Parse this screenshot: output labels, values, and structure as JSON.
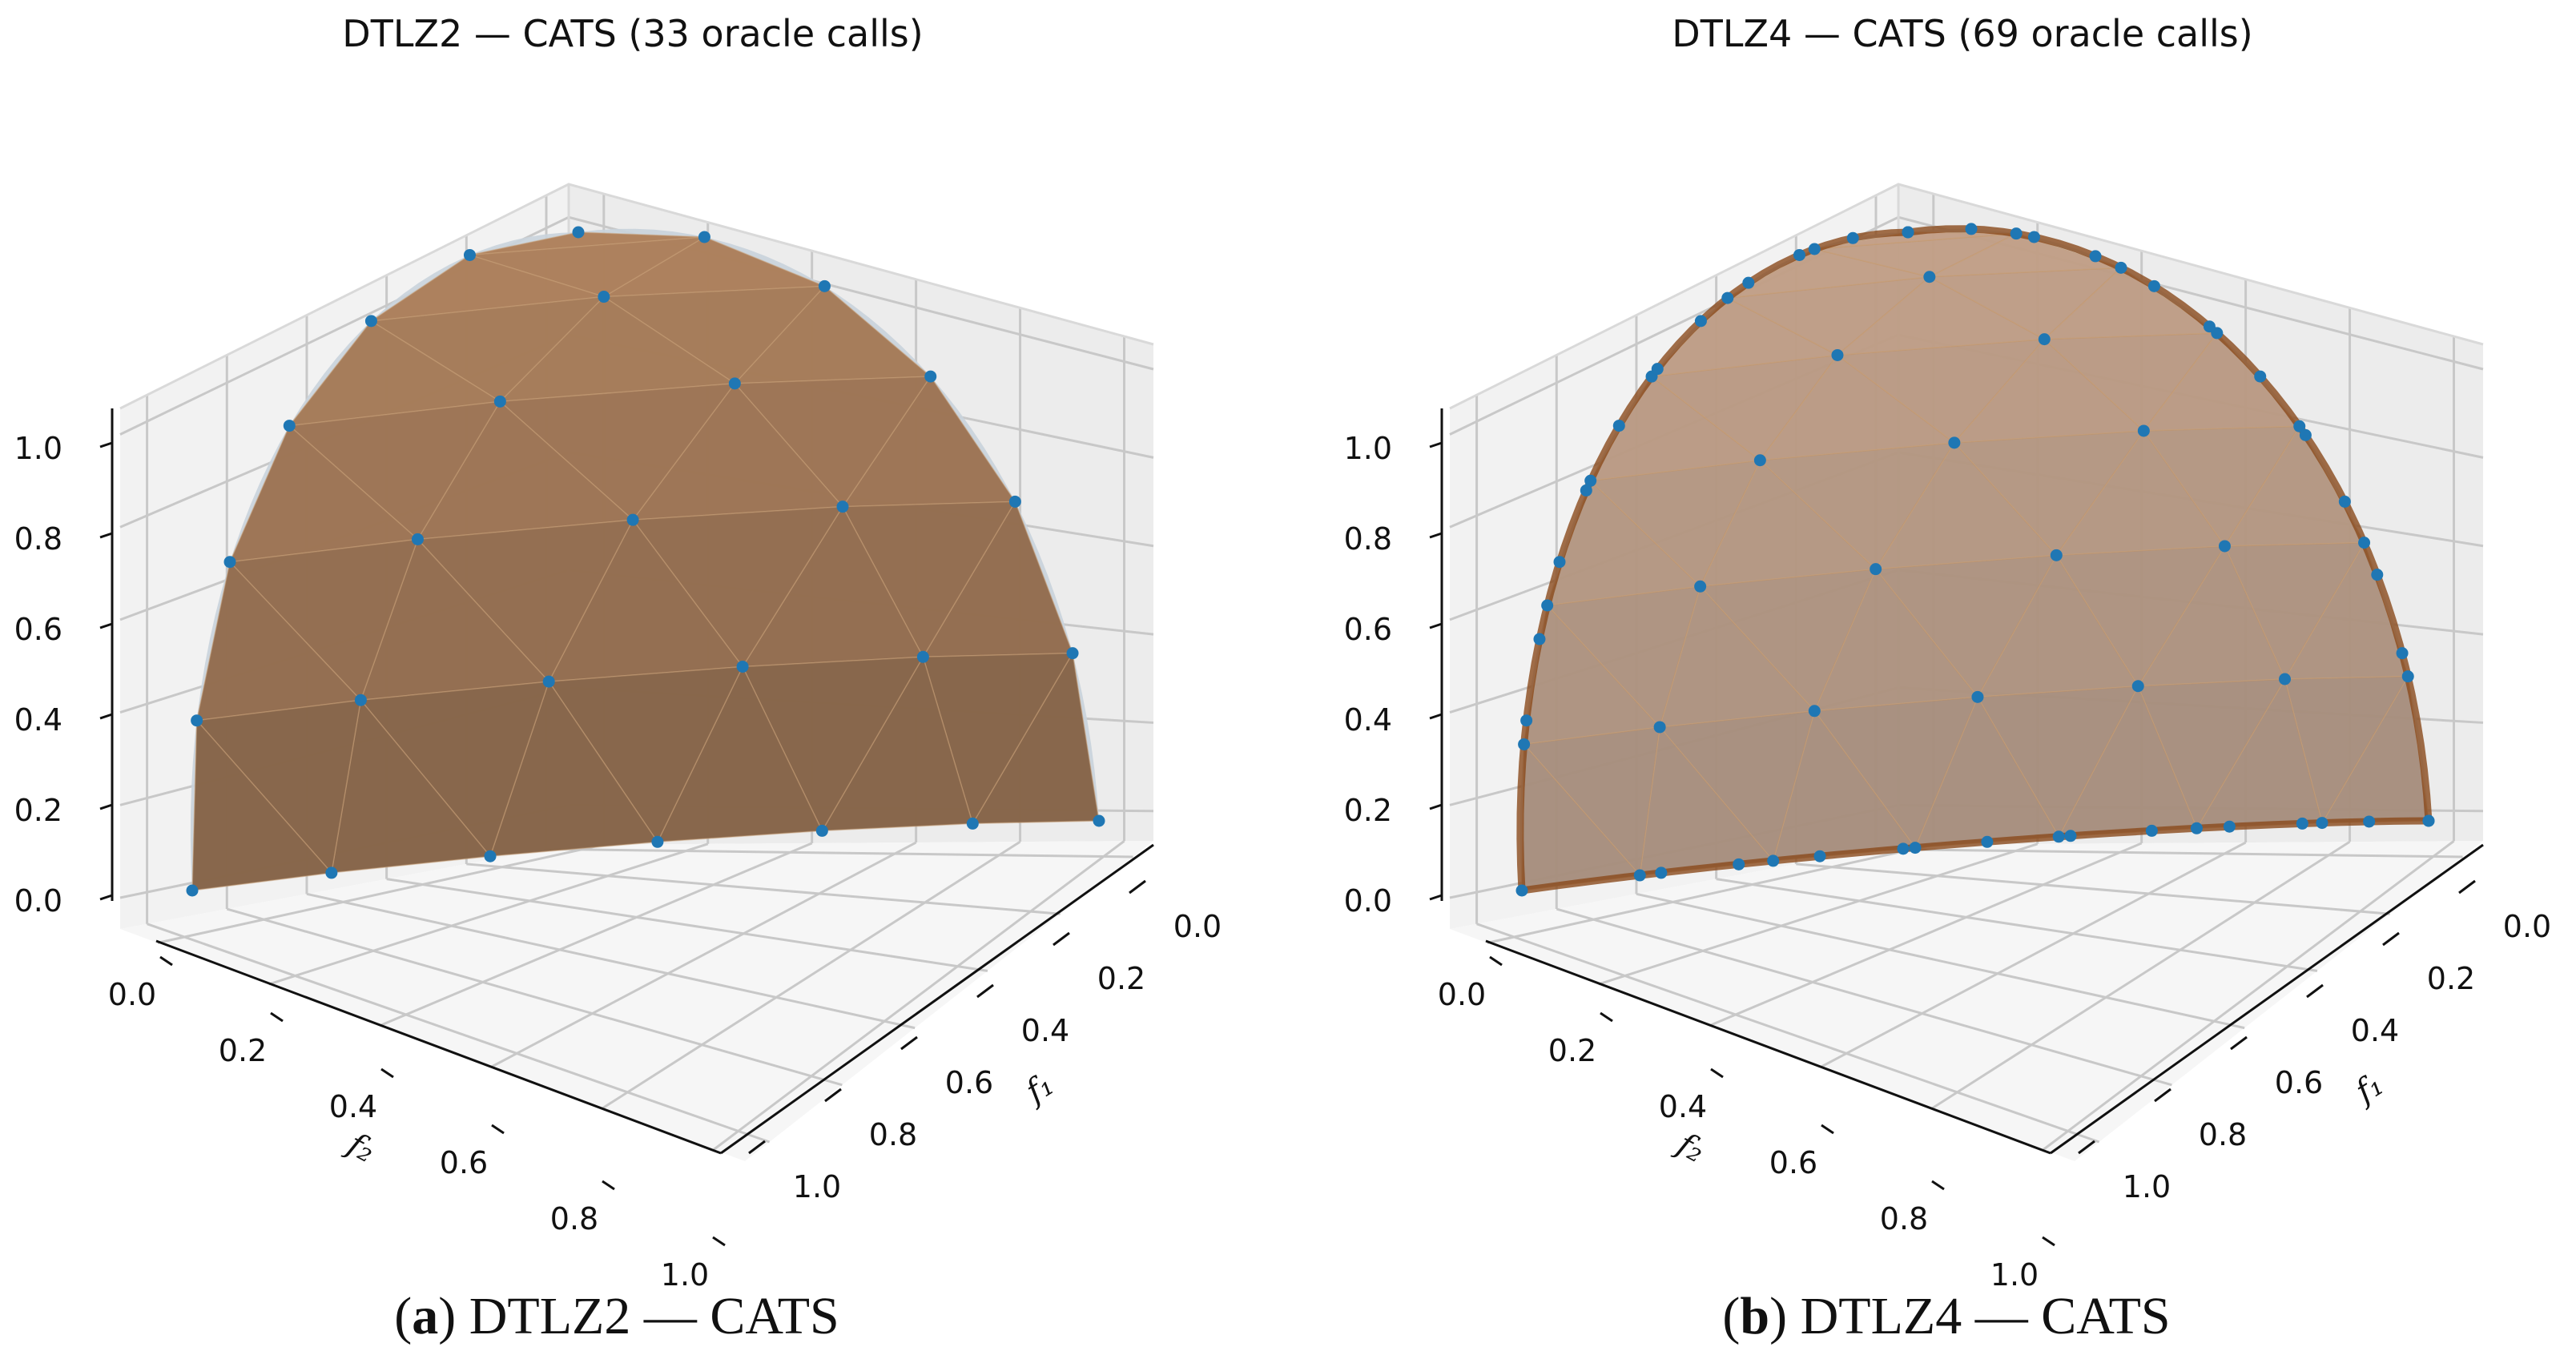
{
  "chart_data": [
    {
      "type": "scatter3d",
      "title": "DTLZ2 — CATS (33 oracle calls)",
      "caption_letter": "a",
      "caption_text": ") DTLZ2 — CATS",
      "x_axis_label": "f₁",
      "y_axis_label": "f₂",
      "x_ticks": [
        "0.0",
        "0.2",
        "0.4",
        "0.6",
        "0.8",
        "1.0"
      ],
      "y_ticks": [
        "0.0",
        "0.2",
        "0.4",
        "0.6",
        "0.8",
        "1.0"
      ],
      "z_ticks": [
        "0.0",
        "0.2",
        "0.4",
        "0.6",
        "0.8",
        "1.0"
      ],
      "xlim": [
        0,
        1
      ],
      "ylim": [
        0,
        1
      ],
      "zlim": [
        0,
        1
      ],
      "point_count": 33,
      "surface": "spherical Pareto front (first octant), triangulated",
      "point_color": "#1f77b4",
      "surface_color": "#b07a4a"
    },
    {
      "type": "scatter3d",
      "title": "DTLZ4 — CATS (69 oracle calls)",
      "caption_letter": "b",
      "caption_text": ") DTLZ4 — CATS",
      "x_axis_label": "f₁",
      "y_axis_label": "f₂",
      "x_ticks": [
        "0.0",
        "0.2",
        "0.4",
        "0.6",
        "0.8",
        "1.0"
      ],
      "y_ticks": [
        "0.0",
        "0.2",
        "0.4",
        "0.6",
        "0.8",
        "1.0"
      ],
      "z_ticks": [
        "0.0",
        "0.2",
        "0.4",
        "0.6",
        "0.8",
        "1.0"
      ],
      "xlim": [
        0,
        1
      ],
      "ylim": [
        0,
        1
      ],
      "zlim": [
        0,
        1
      ],
      "point_count": 69,
      "surface": "spherical Pareto front (first octant), points concentrated on boundary arcs",
      "point_color": "#1f77b4",
      "surface_color": "#c0703a"
    }
  ]
}
